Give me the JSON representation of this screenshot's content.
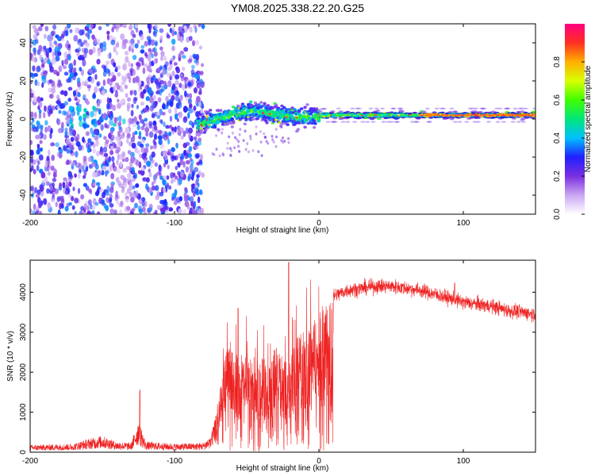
{
  "title": "YM08.2025.338.22.20.G25",
  "chart_data": [
    {
      "type": "heatmap",
      "name": "spectrogram",
      "xlabel": "Height of straight line (km)",
      "ylabel": "Frequency (Hz)",
      "xlim": [
        -200,
        150
      ],
      "ylim": [
        -50,
        50
      ],
      "xticks": [
        -200,
        -100,
        0,
        100
      ],
      "xtick_labels": [
        "-200",
        "-100",
        "0",
        "100"
      ],
      "yticks": [
        -40,
        -20,
        0,
        20,
        40
      ],
      "ytick_labels": [
        "-40",
        "-20",
        "0",
        "20",
        "40"
      ],
      "noise_region_x": [
        -200,
        -80
      ],
      "signal_ridge": {
        "x": [
          -84,
          -75,
          -65,
          -55,
          -45,
          -35,
          -25,
          -15,
          -5,
          5,
          20,
          40,
          60,
          80,
          100,
          120,
          150
        ],
        "freq": [
          -3,
          -1,
          1,
          3,
          4,
          3,
          2,
          1,
          1,
          2,
          2,
          2,
          2,
          2,
          2,
          2,
          2
        ]
      },
      "colorbar": {
        "label": "Normalized spectral amplitude",
        "range": [
          0,
          1
        ],
        "ticks": [
          0.0,
          0.2,
          0.4,
          0.6,
          0.8
        ],
        "tick_labels": [
          "0.0",
          "0.2",
          "0.4",
          "0.6",
          "0.8"
        ],
        "colors": [
          "#ffffff",
          "#c9a6f2",
          "#7b2fe0",
          "#2020ff",
          "#00c0ff",
          "#00e67a",
          "#40ff00",
          "#d8ff00",
          "#ffb000",
          "#ff3020",
          "#ff0080"
        ]
      }
    },
    {
      "type": "line",
      "name": "snr",
      "xlabel": "Height of straight line (km)",
      "ylabel": "SNR (10 * v/v)",
      "xlim": [
        -200,
        150
      ],
      "ylim": [
        0,
        4800
      ],
      "xticks": [
        -200,
        -100,
        0,
        100
      ],
      "xtick_labels": [
        "-200",
        "-100",
        "0",
        "100"
      ],
      "yticks": [
        0,
        1000,
        2000,
        3000,
        4000
      ],
      "ytick_labels": [
        "0",
        "1000",
        "2000",
        "3000",
        "4000"
      ],
      "color": "#ee2222",
      "envelope": {
        "x": [
          -200,
          -170,
          -160,
          -150,
          -140,
          -130,
          -125,
          -120,
          -100,
          -80,
          -75,
          -70,
          -65,
          -60,
          -55,
          -50,
          -45,
          -40,
          -35,
          -30,
          -25,
          -22,
          -20,
          -18,
          -15,
          -10,
          -5,
          0,
          10,
          20,
          30,
          40,
          50,
          60,
          70,
          80,
          90,
          100,
          110,
          120,
          130,
          140,
          150
        ],
        "y": [
          150,
          180,
          280,
          350,
          220,
          200,
          700,
          220,
          180,
          200,
          350,
          1300,
          2400,
          2900,
          2200,
          2600,
          2100,
          2500,
          2200,
          2700,
          2400,
          2000,
          2300,
          2600,
          2900,
          3100,
          3300,
          3500,
          3900,
          4050,
          4100,
          4150,
          4150,
          4100,
          4050,
          3950,
          3850,
          3750,
          3700,
          3650,
          3550,
          3500,
          3450
        ]
      },
      "spikes": [
        {
          "x": -124,
          "y": 1550
        },
        {
          "x": -56,
          "y": 3600
        },
        {
          "x": -21,
          "y": 4750
        },
        {
          "x": 94,
          "y": 4230
        }
      ]
    }
  ]
}
